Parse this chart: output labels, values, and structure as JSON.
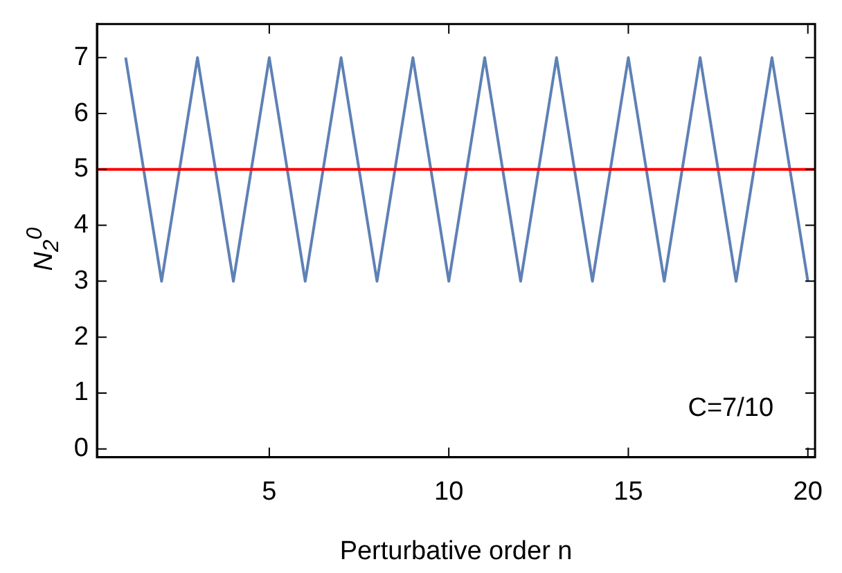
{
  "chart_data": {
    "type": "line",
    "xlabel": "Perturbative order n",
    "ylabel": "N$_{2}$$^{0}$",
    "x": [
      1,
      2,
      3,
      4,
      5,
      6,
      7,
      8,
      9,
      10,
      11,
      12,
      13,
      14,
      15,
      16,
      17,
      18,
      19,
      20
    ],
    "series": [
      {
        "color": "#5e81b5",
        "values": [
          7,
          3,
          7,
          3,
          7,
          3,
          7,
          3,
          7,
          3,
          7,
          3,
          7,
          3,
          7,
          3,
          7,
          3,
          7,
          3
        ]
      }
    ],
    "xlim": [
      0.2,
      20.2
    ],
    "xticks": [
      5,
      10,
      15,
      20
    ],
    "ylim": [
      -0.15,
      7.6
    ],
    "yticks": [
      0,
      1,
      2,
      3,
      4,
      5,
      6,
      7
    ],
    "ref_lines": [
      {
        "axis": "y",
        "value": 5,
        "color": "#ff0000"
      }
    ],
    "annotations": [
      "C=7/10"
    ],
    "grid": false,
    "legend": false,
    "marker": "none",
    "line_style": "solid"
  }
}
